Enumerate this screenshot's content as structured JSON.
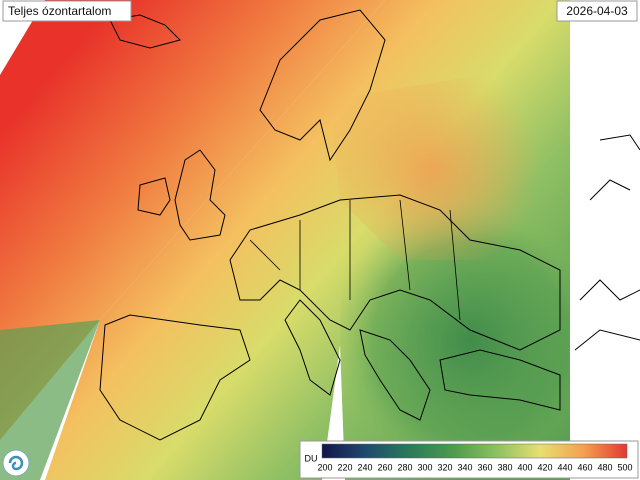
{
  "header": {
    "title": "Teljes ózontartalom",
    "date": "2026-04-03"
  },
  "colorbar": {
    "unit": "DU",
    "min": 200,
    "max": 500,
    "ticks": [
      200,
      220,
      240,
      260,
      280,
      300,
      320,
      340,
      360,
      380,
      400,
      420,
      440,
      460,
      480,
      500
    ],
    "colors": [
      "#14144a",
      "#1f4a6e",
      "#2a7a5a",
      "#4e9a4e",
      "#8cc060",
      "#e6e070",
      "#f4a050",
      "#e03a30"
    ]
  }
}
